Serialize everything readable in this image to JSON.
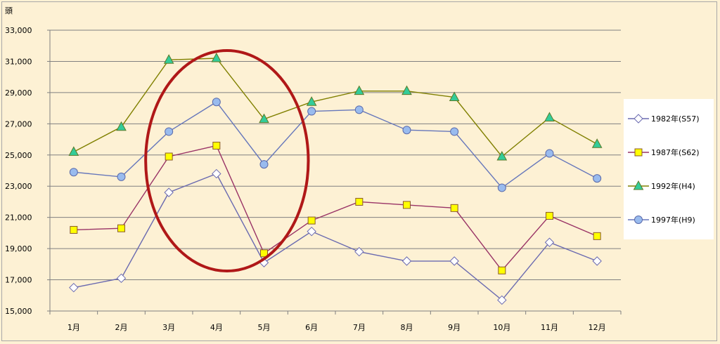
{
  "chart_data": {
    "type": "line",
    "unit_label": "頭",
    "categories": [
      "1月",
      "2月",
      "3月",
      "4月",
      "5月",
      "6月",
      "7月",
      "8月",
      "9月",
      "10月",
      "11月",
      "12月"
    ],
    "y_ticks": [
      "15,000",
      "17,000",
      "19,000",
      "21,000",
      "23,000",
      "25,000",
      "27,000",
      "29,000",
      "31,000",
      "33,000"
    ],
    "ylim": [
      15000,
      33000
    ],
    "grid": true,
    "legend_position": "right",
    "series": [
      {
        "name": "1982年(S57)",
        "color": "#6a6ab0",
        "marker": "diamond",
        "marker_fill": "#ffffff",
        "values": [
          16500,
          17100,
          22600,
          23800,
          18100,
          20100,
          18800,
          18200,
          18200,
          15700,
          19400,
          18200
        ]
      },
      {
        "name": "1987年(S62)",
        "color": "#993366",
        "marker": "square",
        "marker_fill": "#ffff00",
        "values": [
          20200,
          20300,
          24900,
          25600,
          18700,
          20800,
          22000,
          21800,
          21600,
          17600,
          21100,
          19800
        ]
      },
      {
        "name": "1992年(H4)",
        "color": "#808000",
        "marker": "triangle",
        "marker_fill": "#33cc99",
        "values": [
          25200,
          26800,
          31100,
          31200,
          27300,
          28400,
          29100,
          29100,
          28700,
          24900,
          27400,
          25700
        ]
      },
      {
        "name": "1997年(H9)",
        "color": "#6677bb",
        "marker": "circle",
        "marker_fill": "#99bbee",
        "values": [
          23900,
          23600,
          26500,
          28400,
          24400,
          27800,
          27900,
          26600,
          26500,
          22900,
          25100,
          23500
        ]
      }
    ],
    "annotation": {
      "shape": "ellipse",
      "color": "#b01818",
      "span_categories": [
        "3月",
        "5月"
      ]
    }
  }
}
